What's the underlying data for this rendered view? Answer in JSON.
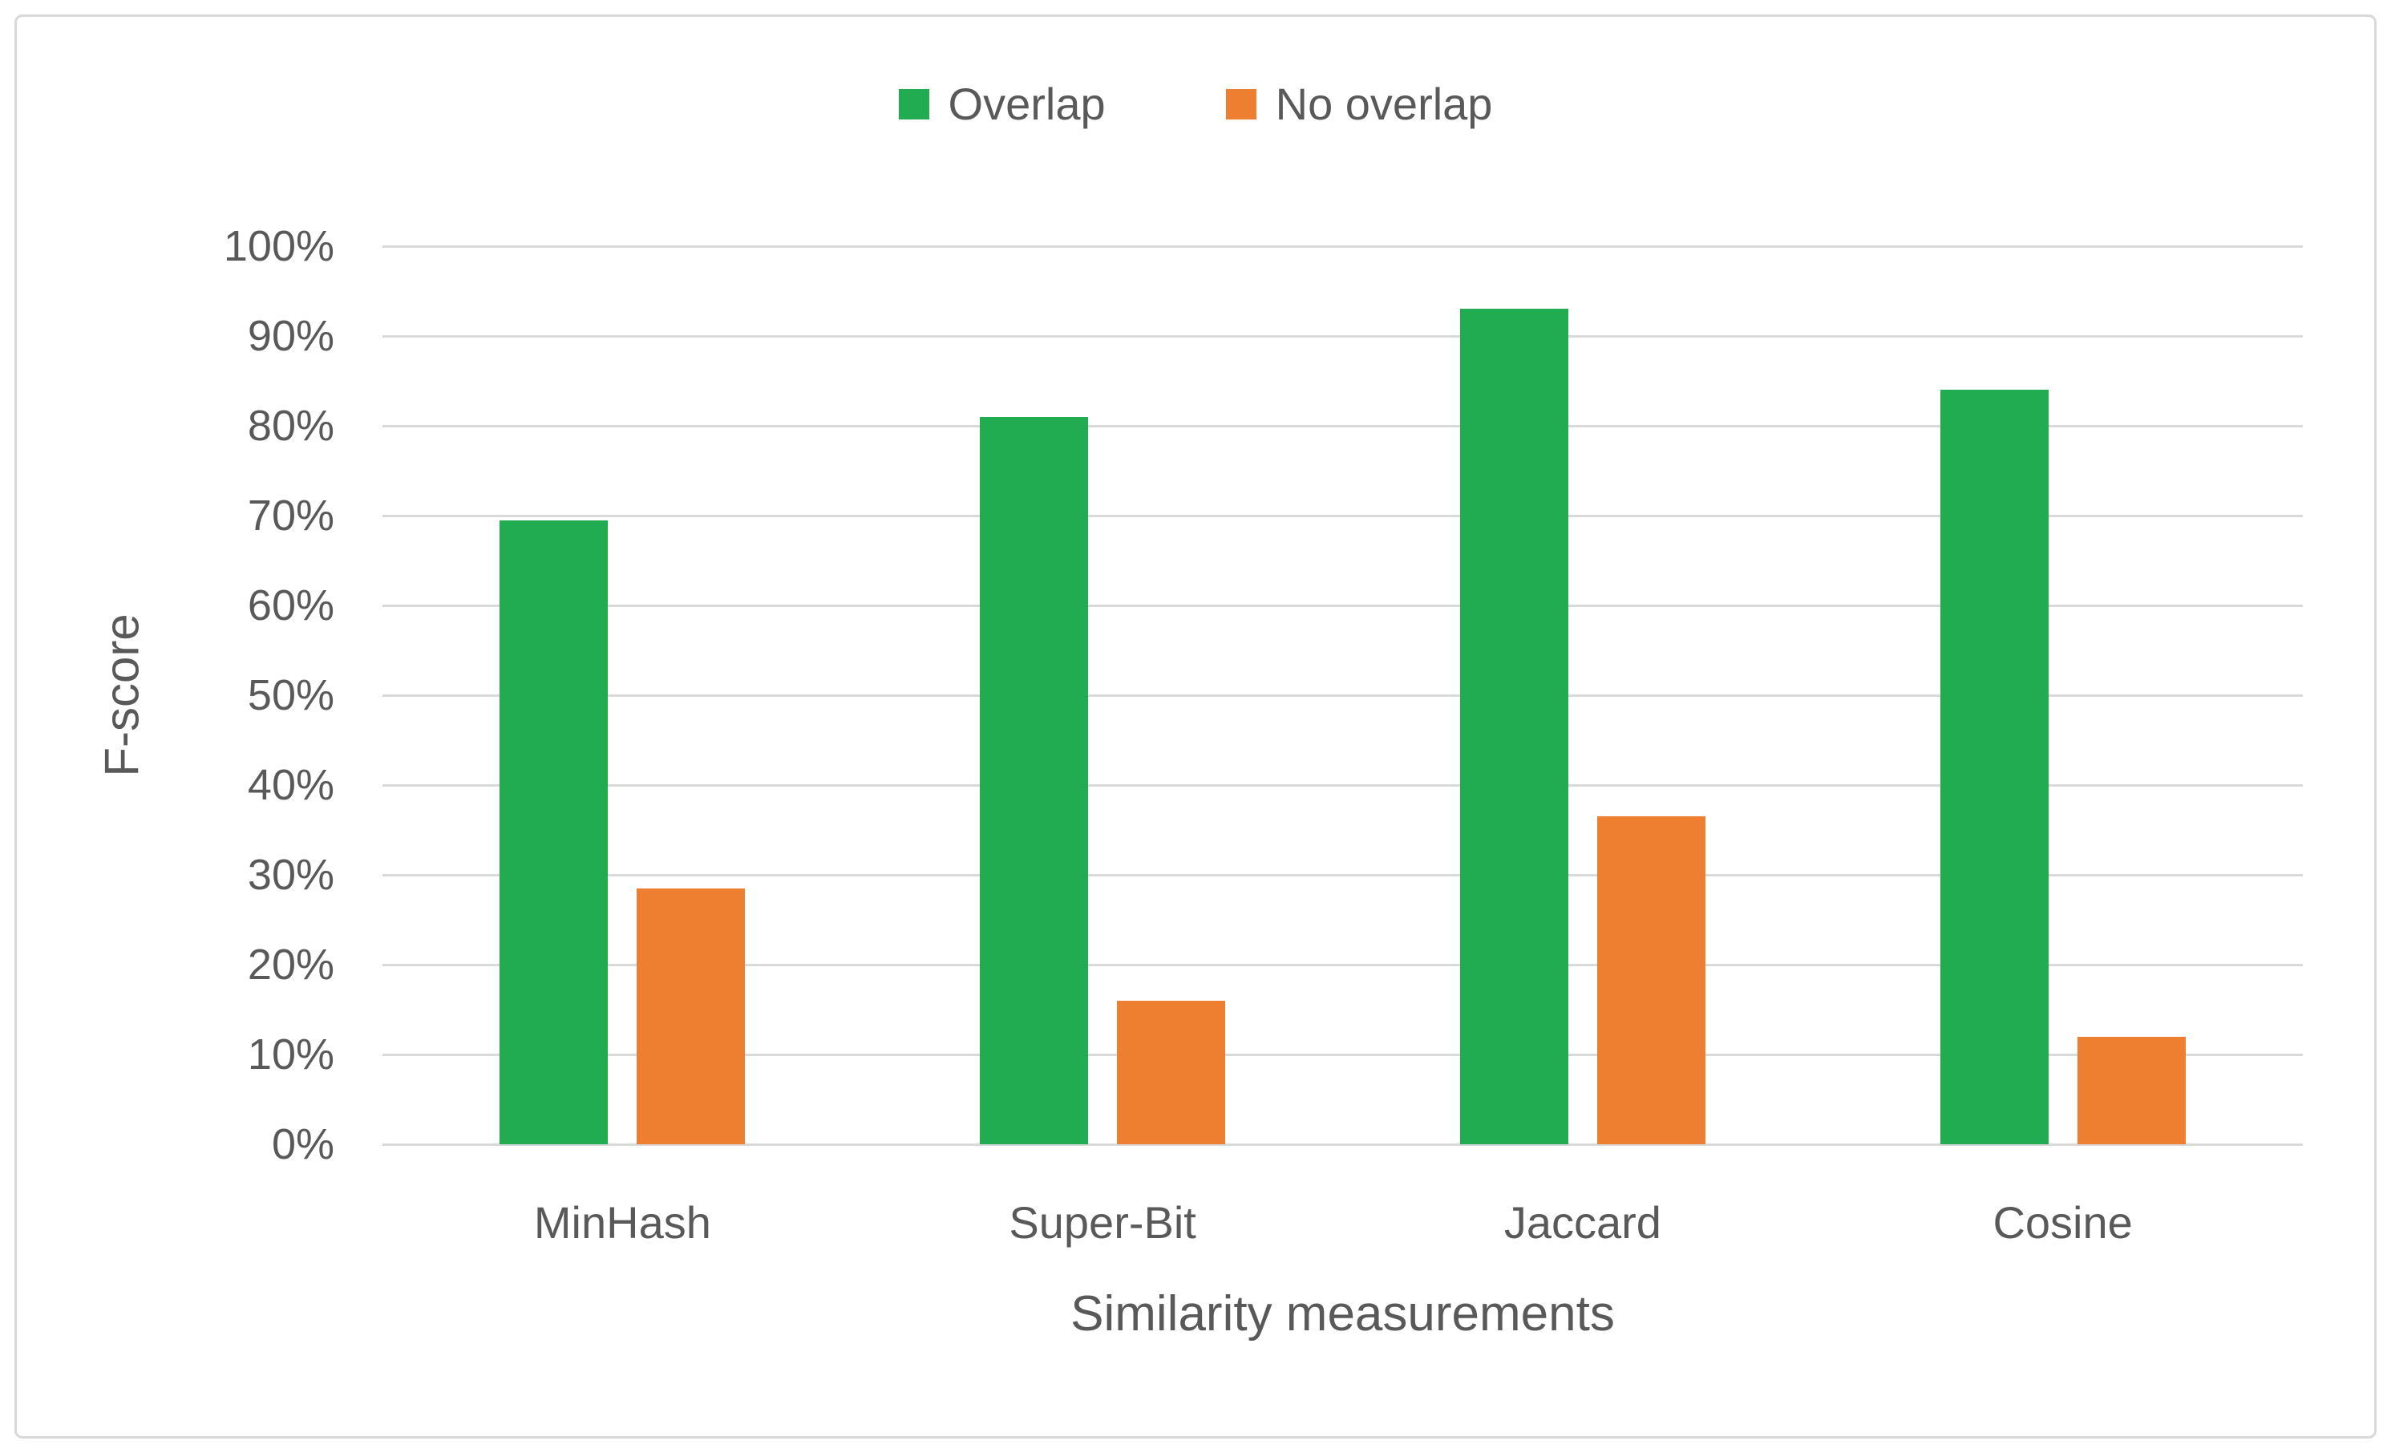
{
  "chart_data": {
    "type": "bar",
    "title": "",
    "categories": [
      "MinHash",
      "Super-Bit",
      "Jaccard",
      "Cosine"
    ],
    "series": [
      {
        "name": "Overlap",
        "color": "#22AC52",
        "values": [
          69.5,
          81,
          93,
          84
        ]
      },
      {
        "name": "No overlap",
        "color": "#EE7F31",
        "values": [
          28.5,
          16,
          36.5,
          12
        ]
      }
    ],
    "xlabel": "Similarity measurements",
    "ylabel": "F-score",
    "ylim": [
      0,
      100
    ],
    "ytick_step": 10,
    "ytick_suffix": "%",
    "grid": true,
    "legend_position": "top-center"
  },
  "colors": {
    "bar_overlap": "#22AC52",
    "bar_no_overlap": "#EE7F31",
    "gridline": "#D9D9D9",
    "axis_text": "#595959",
    "border": "#D9D9D9",
    "background": "#FFFFFF"
  }
}
